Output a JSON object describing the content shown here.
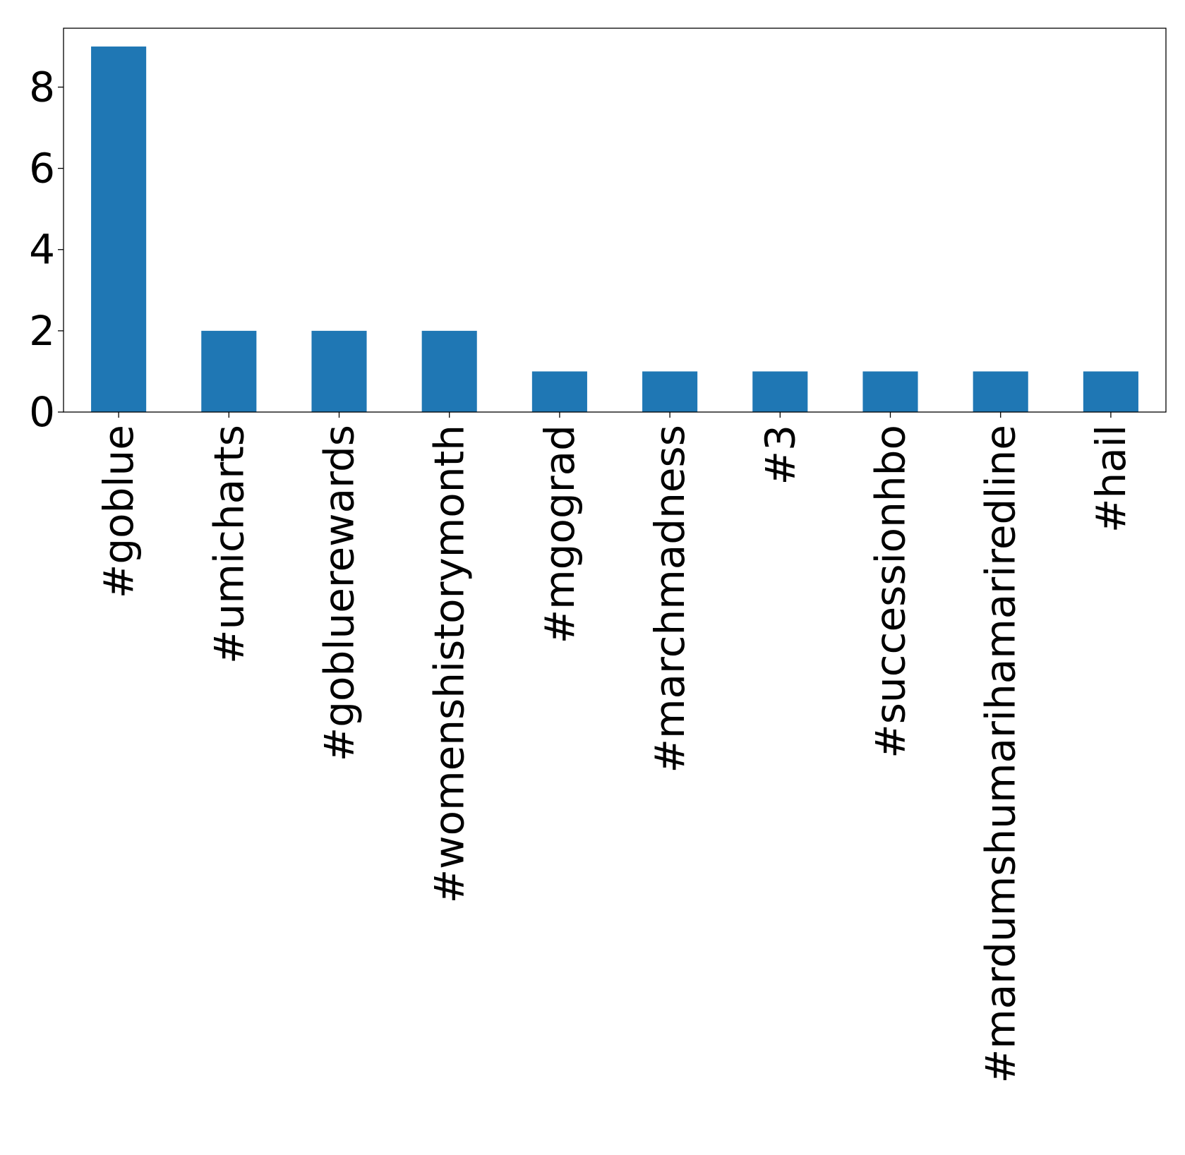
{
  "chart_data": {
    "type": "bar",
    "categories": [
      "#goblue",
      "#umicharts",
      "#gobluerewards",
      "#womenshistorymonth",
      "#mgograd",
      "#marchmadness",
      "#3",
      "#successionhbo",
      "#mardumshumarihamariredline",
      "#hail"
    ],
    "values": [
      9,
      2,
      2,
      2,
      1,
      1,
      1,
      1,
      1,
      1
    ],
    "title": "",
    "xlabel": "",
    "ylabel": "",
    "ylim": [
      0,
      9.45
    ],
    "yticks": [
      "0",
      "2",
      "4",
      "6",
      "8"
    ],
    "bar_color": "#1f77b4",
    "grid": false,
    "legend": "none"
  }
}
